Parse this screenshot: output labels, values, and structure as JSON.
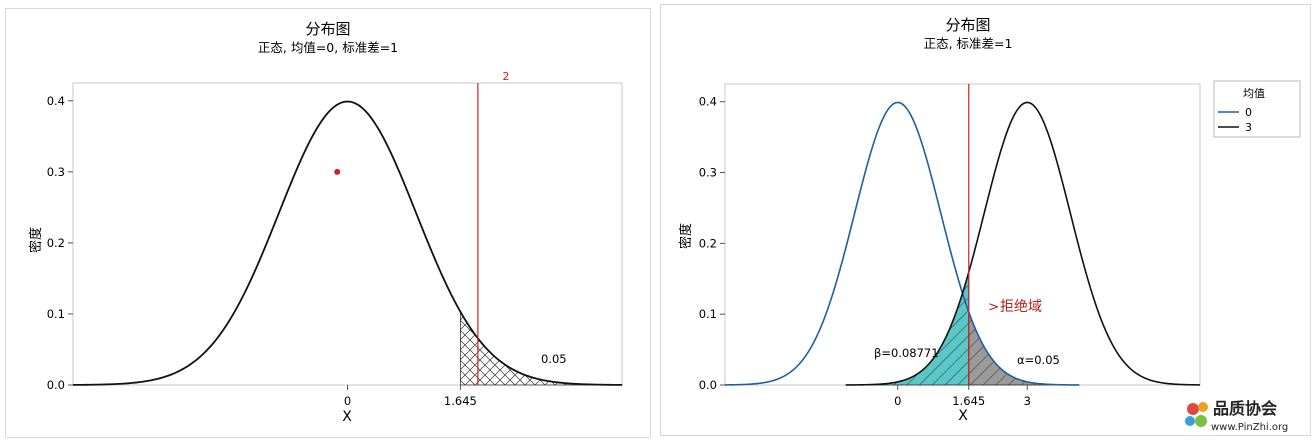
{
  "charts": [
    {
      "title": "分布图",
      "subtitle": "正态, 均值=0, 标准差=1",
      "xlabel": "X",
      "ylabel": "密度",
      "xticks": [
        {
          "value": 0,
          "label": "0"
        },
        {
          "value": 1.645,
          "label": "1.645"
        }
      ],
      "yticks": [
        "0.0",
        "0.1",
        "0.2",
        "0.3",
        "0.4"
      ],
      "ref_line": {
        "value": 1.645,
        "label": "2"
      },
      "area_label": "0.05"
    },
    {
      "title": "分布图",
      "subtitle": "正态, 标准差=1",
      "xlabel": "X",
      "ylabel": "密度",
      "xticks": [
        {
          "value": 0,
          "label": "0"
        },
        {
          "value": 1.645,
          "label": "1.645"
        },
        {
          "value": 3,
          "label": "3"
        }
      ],
      "yticks": [
        "0.0",
        "0.1",
        "0.2",
        "0.3",
        "0.4"
      ],
      "legend_title": "均值",
      "legend": [
        {
          "label": "0",
          "color": "#1f5fa0"
        },
        {
          "label": "3",
          "color": "#111111"
        }
      ],
      "beta_label": "β=0.08771",
      "alpha_label": "α=0.05",
      "reject_label": "拒绝域"
    }
  ],
  "chart_data": [
    {
      "type": "area",
      "distribution": "normal",
      "mean": 0,
      "sd": 1,
      "xlim": [
        -4,
        4
      ],
      "ylim": [
        0,
        0.4
      ],
      "critical_value": 1.645,
      "shaded_tail": "right",
      "tail_area": 0.05,
      "marker_point": {
        "x": 0,
        "y": 0.3,
        "color": "#cc2222"
      },
      "colors": {
        "curve": "#111111",
        "refline": "#cc2222"
      }
    },
    {
      "type": "area",
      "distribution": "normal",
      "series": [
        {
          "name": "0",
          "mean": 0,
          "sd": 1,
          "color": "#1f5fa0"
        },
        {
          "name": "3",
          "mean": 3,
          "sd": 1,
          "color": "#111111"
        }
      ],
      "xlim": [
        -4,
        7
      ],
      "ylim": [
        0,
        0.4
      ],
      "critical_value": 1.645,
      "alpha": 0.05,
      "beta": 0.08771,
      "legend_position": "top-right",
      "colors": {
        "beta_fill": "#5bc6c6",
        "alpha_fill": "#9a9a9a",
        "refline": "#cc2222"
      }
    }
  ]
}
